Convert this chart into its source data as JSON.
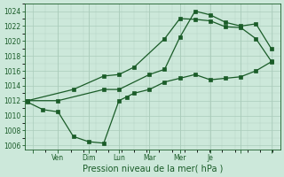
{
  "background_color": "#cce8da",
  "grid_color": "#aaccbb",
  "line_color": "#1a5c28",
  "xlabel": "Pression niveau de la mer( hPa )",
  "ylim": [
    1005.5,
    1025.0
  ],
  "yticks": [
    1006,
    1008,
    1010,
    1012,
    1014,
    1016,
    1018,
    1020,
    1022,
    1024
  ],
  "x_tick_positions": [
    0.17,
    1.0,
    2.0,
    3.0,
    4.0,
    5.0,
    6.0,
    7.0,
    8.0
  ],
  "x_tick_labels": [
    "",
    "Ven",
    "Dim",
    "Lun",
    "Mar",
    "Mer",
    "Je",
    "",
    ""
  ],
  "xlim": [
    -0.1,
    8.3
  ],
  "series1_x": [
    0,
    0.5,
    1.0,
    1.5,
    2.0,
    2.5,
    3.0,
    3.25,
    3.5,
    4.0,
    4.5,
    5.0,
    5.5,
    6.0,
    6.5,
    7.0,
    7.5,
    8.0
  ],
  "series1_y": [
    1011.8,
    1010.8,
    1010.5,
    1007.2,
    1006.5,
    1006.3,
    1012.0,
    1012.5,
    1013.0,
    1013.5,
    1014.5,
    1015.0,
    1015.5,
    1014.8,
    1015.0,
    1015.2,
    1016.0,
    1017.2
  ],
  "series2_x": [
    0,
    1.5,
    2.5,
    3.0,
    3.5,
    4.5,
    5.0,
    5.5,
    6.0,
    6.5,
    7.0,
    7.5,
    8.0
  ],
  "series2_y": [
    1012.0,
    1013.5,
    1015.3,
    1015.5,
    1016.5,
    1020.3,
    1023.0,
    1022.9,
    1022.7,
    1021.9,
    1021.8,
    1020.3,
    1017.3
  ],
  "series3_x": [
    0,
    1.0,
    2.5,
    3.0,
    4.0,
    4.5,
    5.0,
    5.5,
    6.0,
    6.5,
    7.0,
    7.5,
    8.0
  ],
  "series3_y": [
    1012.0,
    1012.0,
    1013.5,
    1013.5,
    1015.5,
    1016.2,
    1020.5,
    1024.0,
    1023.5,
    1022.5,
    1022.0,
    1022.3,
    1019.0
  ],
  "ylabel_fontsize": 5.5,
  "xlabel_fontsize": 7.0,
  "tick_fontsize": 5.5,
  "linewidth": 0.9,
  "markersize": 2.5
}
